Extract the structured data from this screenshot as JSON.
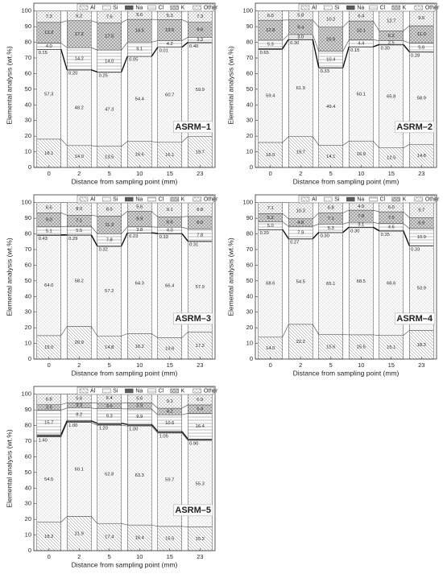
{
  "chart_data": [
    {
      "type": "stacked_bar",
      "title": "ASRM–1",
      "x_label": "Distance from sampling point (mm)",
      "y_label": "Elemental analysis (wt.%)",
      "categories": [
        "0",
        "2",
        "5",
        "10",
        "15",
        "23"
      ],
      "ylim": [
        0,
        105
      ],
      "yticks": [
        0,
        10,
        20,
        30,
        40,
        50,
        60,
        70,
        80,
        90,
        100
      ],
      "series": [
        {
          "name": "Al",
          "color": "#ffffff",
          "hatch": "diagonal",
          "values": [
            18.1,
            14.0,
            13.5,
            16.6,
            16.1,
            19.7
          ],
          "value_labels": [
            "18.1",
            "14.0",
            "13.5",
            "16.6",
            "16.1",
            "19.7"
          ]
        },
        {
          "name": "Si",
          "color": "#ffffff",
          "hatch": "dots",
          "values": [
            57.3,
            48.2,
            47.3,
            54.4,
            60.7,
            59.9
          ],
          "value_labels": [
            "57.3",
            "48.2",
            "47.3",
            "54.4",
            "60.7",
            "59.9"
          ]
        },
        {
          "name": "Na",
          "color": "#5a5a5a",
          "hatch": "solid",
          "values": [
            0.15,
            0.2,
            0.25,
            0.05,
            0.01,
            0.4
          ],
          "value_labels": [
            "0.15",
            "0.20",
            "0.25",
            "0.05",
            "0.01",
            "0.40"
          ]
        },
        {
          "name": "Cl",
          "color": "#ffffff",
          "hatch": "horizontal",
          "values": [
            4.0,
            14.2,
            14.0,
            9.1,
            4.2,
            3.2
          ],
          "value_labels": [
            "4.0",
            "14.2",
            "14.0",
            "9.1",
            "4.2",
            "3.2"
          ]
        },
        {
          "name": "K",
          "color": "#d4d4d4",
          "hatch": "cross",
          "values": [
            13.2,
            17.2,
            17.5,
            14.5,
            13.5,
            9.6
          ],
          "value_labels": [
            "13.2",
            "17.2",
            "17.5",
            "14.5",
            "13.5",
            "9.6"
          ]
        },
        {
          "name": "Other",
          "color": "#ffffff",
          "hatch": "grid",
          "values": [
            7.3,
            6.2,
            7.6,
            5.6,
            5.3,
            7.3
          ],
          "value_labels": [
            "7.3",
            "6.2",
            "7.6",
            "5.6",
            "5.3",
            "7.3"
          ]
        }
      ]
    },
    {
      "type": "stacked_bar",
      "title": "ASRM–2",
      "x_label": "Distance from sampling point (mm)",
      "y_label": "Elemental analysis (wt.%)",
      "categories": [
        "0",
        "2",
        "5",
        "10",
        "15",
        "23"
      ],
      "ylim": [
        0,
        105
      ],
      "yticks": [
        0,
        10,
        20,
        30,
        40,
        50,
        60,
        70,
        80,
        90,
        100
      ],
      "series": [
        {
          "name": "Al",
          "color": "#ffffff",
          "hatch": "diagonal",
          "values": [
            16.0,
            19.7,
            14.1,
            16.9,
            12.5,
            14.8
          ],
          "value_labels": [
            "16.0",
            "19.7",
            "14.1",
            "16.9",
            "12.5",
            "14.8"
          ]
        },
        {
          "name": "Si",
          "color": "#ffffff",
          "hatch": "dots",
          "values": [
            59.4,
            61.9,
            49.4,
            60.1,
            65.8,
            58.9
          ],
          "value_labels": [
            "59.4",
            "61.9",
            "49.4",
            "60.1",
            "65.8",
            "58.9"
          ]
        },
        {
          "name": "Na",
          "color": "#5a5a5a",
          "hatch": "solid",
          "values": [
            0.65,
            0.3,
            0.33,
            0.15,
            0.3,
            0.28
          ],
          "value_labels": [
            "0.65",
            "0.30",
            "0.33",
            "0.15",
            "0.30",
            "0.28"
          ]
        },
        {
          "name": "Cl",
          "color": "#ffffff",
          "hatch": "horizontal",
          "values": [
            5.3,
            3.0,
            10.4,
            4.4,
            2.5,
            5.6
          ],
          "value_labels": [
            "5.3",
            "3.0",
            "10.4",
            "4.4",
            "2.5",
            "5.6"
          ]
        },
        {
          "name": "K",
          "color": "#d4d4d4",
          "hatch": "cross",
          "values": [
            12.8,
            9.4,
            15.5,
            12.1,
            6.2,
            11.0
          ],
          "value_labels": [
            "12.8",
            "9.4",
            "15.5",
            "12.1",
            "6.2",
            "11.0"
          ]
        },
        {
          "name": "Other",
          "color": "#ffffff",
          "hatch": "grid",
          "values": [
            6.0,
            5.8,
            10.2,
            6.4,
            12.7,
            9.6
          ],
          "value_labels": [
            "6.0",
            "5.8",
            "10.2",
            "6.4",
            "12.7",
            "9.6"
          ]
        }
      ]
    },
    {
      "type": "stacked_bar",
      "title": "ASRM–3",
      "x_label": "Distance from sampling point (mm)",
      "y_label": "Elemental analysis (wt.%)",
      "categories": [
        "0",
        "2",
        "5",
        "10",
        "15",
        "23"
      ],
      "ylim": [
        0,
        105
      ],
      "yticks": [
        0,
        10,
        20,
        30,
        40,
        50,
        60,
        70,
        80,
        90,
        100
      ],
      "series": [
        {
          "name": "Al",
          "color": "#ffffff",
          "hatch": "diagonal",
          "values": [
            15.0,
            20.9,
            14.8,
            16.2,
            13.6,
            17.2
          ],
          "value_labels": [
            "15.0",
            "20.9",
            "14.8",
            "16.2",
            "13.6",
            "17.2"
          ]
        },
        {
          "name": "Si",
          "color": "#ffffff",
          "hatch": "dots",
          "values": [
            64.0,
            58.2,
            57.2,
            64.3,
            66.4,
            57.9
          ],
          "value_labels": [
            "64.0",
            "58.2",
            "57.2",
            "64.3",
            "66.4",
            "57.9"
          ]
        },
        {
          "name": "Na",
          "color": "#5a5a5a",
          "hatch": "solid",
          "values": [
            0.43,
            0.29,
            0.32,
            0.23,
            0.33,
            0.31
          ],
          "value_labels": [
            "0.43",
            "0.29",
            "0.32",
            "0.23",
            "0.33",
            "0.31"
          ]
        },
        {
          "name": "Cl",
          "color": "#ffffff",
          "hatch": "horizontal",
          "values": [
            5.1,
            5.5,
            7.8,
            3.8,
            4.0,
            7.8
          ],
          "value_labels": [
            "5.1",
            "5.5",
            "7.8",
            "3.8",
            "4.0",
            "7.8"
          ]
        },
        {
          "name": "K",
          "color": "#d4d4d4",
          "hatch": "cross",
          "values": [
            9.0,
            7.1,
            11.3,
            9.9,
            6.6,
            8.0
          ],
          "value_labels": [
            "9.0",
            "7.1",
            "11.3",
            "9.9",
            "6.6",
            "8.0"
          ]
        },
        {
          "name": "Other",
          "color": "#ffffff",
          "hatch": "grid",
          "values": [
            6.5,
            8.0,
            8.5,
            5.6,
            9.1,
            8.8
          ],
          "value_labels": [
            "6.5",
            "8.0",
            "8.5",
            "5.6",
            "9.1",
            "8.8"
          ]
        }
      ]
    },
    {
      "type": "stacked_bar",
      "title": "ASRM–4",
      "x_label": "Distance from sampling point (mm)",
      "y_label": "Elemental analysis (wt.%)",
      "categories": [
        "0",
        "2",
        "5",
        "10",
        "15",
        "23"
      ],
      "ylim": [
        0,
        105
      ],
      "yticks": [
        0,
        10,
        20,
        30,
        40,
        50,
        60,
        70,
        80,
        90,
        100
      ],
      "series": [
        {
          "name": "Al",
          "color": "#ffffff",
          "hatch": "diagonal",
          "values": [
            14.0,
            22.2,
            15.6,
            15.5,
            15.1,
            18.3
          ],
          "value_labels": [
            "14.0",
            "22.2",
            "15.6",
            "15.5",
            "15.1",
            "18.3"
          ]
        },
        {
          "name": "Si",
          "color": "#ffffff",
          "hatch": "dots",
          "values": [
            68.6,
            54.5,
            65.1,
            68.5,
            66.6,
            53.9
          ],
          "value_labels": [
            "68.6",
            "54.5",
            "65.1",
            "68.5",
            "66.6",
            "53.9"
          ]
        },
        {
          "name": "Na",
          "color": "#5a5a5a",
          "hatch": "solid",
          "values": [
            0.2,
            0.27,
            0.3,
            0.3,
            0.35,
            0.33
          ],
          "value_labels": [
            "0.20",
            "0.27",
            "0.30",
            "0.30",
            "0.35",
            "0.33"
          ]
        },
        {
          "name": "Cl",
          "color": "#ffffff",
          "hatch": "horizontal",
          "values": [
            5.0,
            7.9,
            5.3,
            3.1,
            4.6,
            10.9
          ],
          "value_labels": [
            "5.0",
            "7.9",
            "5.3",
            "3.1",
            "4.6",
            "10.9"
          ]
        },
        {
          "name": "K",
          "color": "#d4d4d4",
          "hatch": "cross",
          "values": [
            5.2,
            4.8,
            7.1,
            7.8,
            7.5,
            6.9
          ],
          "value_labels": [
            "5.2",
            "4.8",
            "7.1",
            "7.8",
            "7.5",
            "6.9"
          ]
        },
        {
          "name": "Other",
          "color": "#ffffff",
          "hatch": "grid",
          "values": [
            7.1,
            10.3,
            6.8,
            4.9,
            6.0,
            9.7
          ],
          "value_labels": [
            "7.1",
            "10.3",
            "6.8",
            "4.9",
            "6.0",
            "9.7"
          ]
        }
      ]
    },
    {
      "type": "stacked_bar",
      "title": "ASRM–5",
      "x_label": "Distance from sampling point (mm)",
      "y_label": "Elemental analysis (wt.%)",
      "categories": [
        "0",
        "2",
        "5",
        "10",
        "15",
        "23"
      ],
      "ylim": [
        0,
        105
      ],
      "yticks": [
        0,
        10,
        20,
        30,
        40,
        50,
        60,
        70,
        80,
        90,
        100
      ],
      "series": [
        {
          "name": "Al",
          "color": "#ffffff",
          "hatch": "diagonal",
          "values": [
            18.2,
            21.9,
            17.4,
            16.4,
            15.5,
            15.2
          ],
          "value_labels": [
            "18.2",
            "21.9",
            "17.4",
            "16.4",
            "15.5",
            "15.2"
          ]
        },
        {
          "name": "Si",
          "color": "#ffffff",
          "hatch": "dots",
          "values": [
            54.5,
            60.1,
            62.8,
            63.3,
            59.7,
            55.3
          ],
          "value_labels": [
            "54.5",
            "60.1",
            "62.8",
            "63.3",
            "59.7",
            "55.3"
          ]
        },
        {
          "name": "Na",
          "color": "#5a5a5a",
          "hatch": "solid",
          "values": [
            1.4,
            1.0,
            1.2,
            1.0,
            1.05,
            0.9
          ],
          "value_labels": [
            "1.40",
            "1.00",
            "1.20",
            "1.00",
            "1.05",
            "0.90"
          ]
        },
        {
          "name": "Cl",
          "color": "#ffffff",
          "hatch": "horizontal",
          "values": [
            15.7,
            8.2,
            9.3,
            9.9,
            10.6,
            16.4
          ],
          "value_labels": [
            "15.7",
            "8.2",
            "9.3",
            "9.9",
            "10.6",
            "16.4"
          ]
        },
        {
          "name": "K",
          "color": "#d4d4d4",
          "hatch": "cross",
          "values": [
            3.5,
            3.3,
            3.6,
            3.9,
            4.2,
            5.4
          ],
          "value_labels": [
            "3.5",
            "3.3",
            "3.6",
            "3.9",
            "4.2",
            "5.4"
          ]
        },
        {
          "name": "Other",
          "color": "#ffffff",
          "hatch": "grid",
          "values": [
            6.8,
            5.6,
            6.4,
            5.6,
            9.1,
            6.9
          ],
          "value_labels": [
            "6.8",
            "5.6",
            "6.4",
            "5.6",
            "9.1",
            "6.9"
          ]
        }
      ]
    }
  ]
}
